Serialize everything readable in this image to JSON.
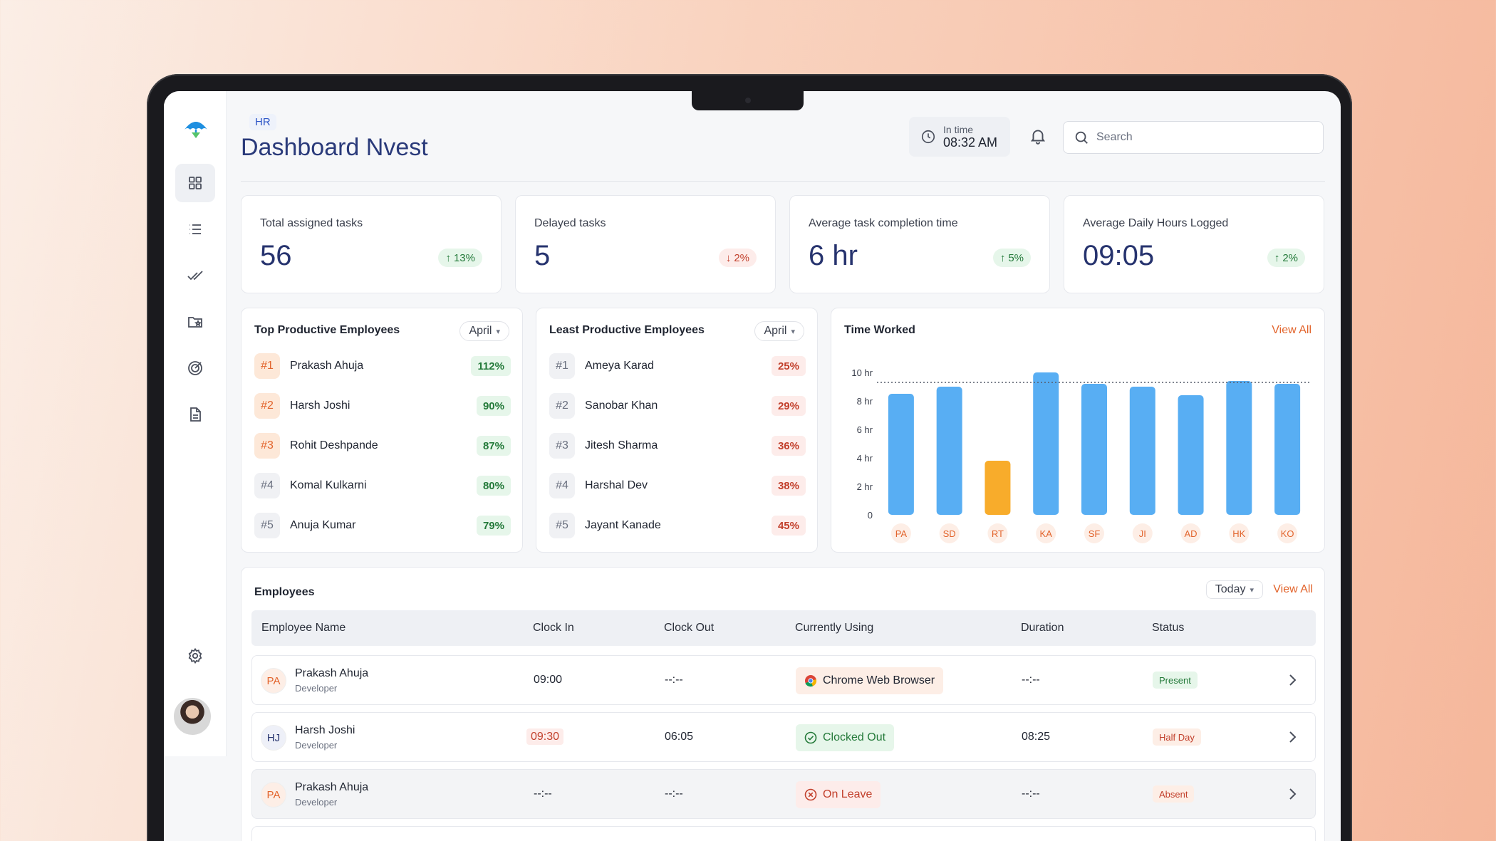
{
  "header": {
    "breadcrumb": "HR",
    "title": "Dashboard Nvest",
    "in_time_label": "In time",
    "in_time_value": "08:32 AM",
    "search_placeholder": "Search"
  },
  "stats": [
    {
      "label": "Total assigned tasks",
      "value": "56",
      "change": "13%",
      "trend": "up"
    },
    {
      "label": "Delayed tasks",
      "value": "5",
      "change": "2%",
      "trend": "down"
    },
    {
      "label": "Average task completion time",
      "value": "6 hr",
      "change": "5%",
      "trend": "up"
    },
    {
      "label": "Average Daily Hours Logged",
      "value": "09:05",
      "change": "2%",
      "trend": "up"
    }
  ],
  "top_productive": {
    "title": "Top Productive Employees",
    "period": "April",
    "items": [
      {
        "rank": "#1",
        "name": "Prakash Ahuja",
        "pct": "112%"
      },
      {
        "rank": "#2",
        "name": "Harsh Joshi",
        "pct": "90%"
      },
      {
        "rank": "#3",
        "name": "Rohit Deshpande",
        "pct": "87%"
      },
      {
        "rank": "#4",
        "name": "Komal Kulkarni",
        "pct": "80%"
      },
      {
        "rank": "#5",
        "name": "Anuja Kumar",
        "pct": "79%"
      }
    ]
  },
  "least_productive": {
    "title": "Least Productive Employees",
    "period": "April",
    "items": [
      {
        "rank": "#1",
        "name": "Ameya Karad",
        "pct": "25%"
      },
      {
        "rank": "#2",
        "name": "Sanobar Khan",
        "pct": "29%"
      },
      {
        "rank": "#3",
        "name": "Jitesh Sharma",
        "pct": "36%"
      },
      {
        "rank": "#4",
        "name": "Harshal Dev",
        "pct": "38%"
      },
      {
        "rank": "#5",
        "name": "Jayant Kanade",
        "pct": "45%"
      }
    ]
  },
  "time_worked": {
    "title": "Time Worked",
    "view_all": "View All"
  },
  "chart_data": {
    "type": "bar",
    "title": "Time Worked",
    "categories": [
      "PA",
      "SD",
      "RT",
      "KA",
      "SF",
      "JI",
      "AD",
      "HK",
      "KO"
    ],
    "values": [
      8.5,
      9.0,
      3.8,
      10.0,
      9.2,
      9.0,
      8.4,
      9.4,
      9.2
    ],
    "highlight": [
      "#58aef3",
      "#58aef3",
      "#f8ac2b",
      "#58aef3",
      "#58aef3",
      "#58aef3",
      "#58aef3",
      "#58aef3",
      "#58aef3"
    ],
    "yticks": [
      "0",
      "2 hr",
      "4 hr",
      "6 hr",
      "8 hr",
      "10 hr"
    ],
    "ytick_values": [
      0,
      2,
      4,
      6,
      8,
      10
    ],
    "ylim": [
      0,
      10
    ],
    "reference_line": 9.3,
    "grid": false
  },
  "employees": {
    "title": "Employees",
    "period": "Today",
    "view_all": "View All",
    "columns": [
      "Employee Name",
      "Clock In",
      "Clock Out",
      "Currently Using",
      "Duration",
      "Status"
    ],
    "rows": [
      {
        "initials": "PA",
        "name": "Prakash Ahuja",
        "role": "Developer",
        "clock_in": "09:00",
        "clock_out": "--:--",
        "using": "Chrome Web Browser",
        "duration": "--:--",
        "status": "Present"
      },
      {
        "initials": "HJ",
        "name": "Harsh Joshi",
        "role": "Developer",
        "clock_in": "09:30",
        "clock_out": "06:05",
        "using": "Clocked Out",
        "duration": "08:25",
        "status": "Half Day"
      },
      {
        "initials": "PA",
        "name": "Prakash Ahuja",
        "role": "Developer",
        "clock_in": "--:--",
        "clock_out": "--:--",
        "using": "On Leave",
        "duration": "--:--",
        "status": "Absent"
      }
    ]
  },
  "colors": {
    "accent": "#e2642c",
    "title": "#2a3a7a",
    "bar": "#58aef3",
    "bar_alt": "#f8ac2b"
  }
}
